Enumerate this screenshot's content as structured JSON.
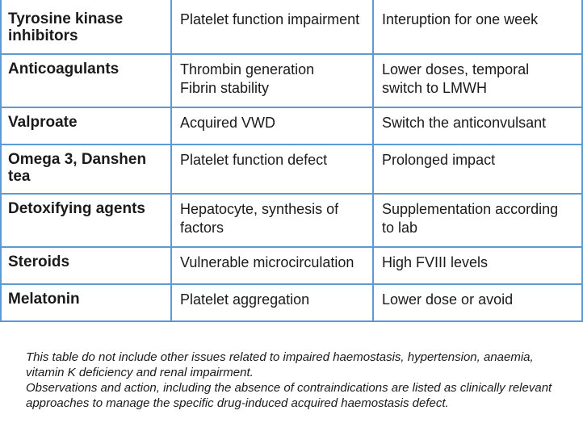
{
  "table": {
    "rows": [
      {
        "drug": "Tyrosine kinase inhibitors",
        "effect": [
          "Platelet function impairment"
        ],
        "action": [
          "Interuption for one week"
        ]
      },
      {
        "drug": "Anticoagulants",
        "effect": [
          "Thrombin generation",
          "Fibrin stability"
        ],
        "action": [
          "Lower doses, temporal",
          "switch to LMWH"
        ]
      },
      {
        "drug": "Valproate",
        "effect": [
          "Acquired VWD"
        ],
        "action": [
          "Switch the anticonvulsant"
        ]
      },
      {
        "drug": "Omega 3, Danshen tea",
        "effect": [
          "Platelet function defect"
        ],
        "action": [
          "Prolonged impact"
        ]
      },
      {
        "drug": "Detoxifying agents",
        "effect": [
          "Hepatocyte, synthesis of",
          "factors"
        ],
        "action": [
          "Supplementation according",
          "to lab"
        ]
      },
      {
        "drug": "Steroids",
        "effect": [
          "Vulnerable microcirculation"
        ],
        "action": [
          "High FVIII levels"
        ]
      },
      {
        "drug": "Melatonin",
        "effect": [
          "Platelet aggregation"
        ],
        "action": [
          "Lower dose or avoid"
        ]
      }
    ]
  },
  "footnotes": {
    "note1": "This table do not include other issues related to impaired haemostasis, hypertension, anaemia, vitamin K deficiency and renal impairment.",
    "note2": "Observations and action, including the absence of contraindications are listed as clinically relevant approaches to manage the specific drug-induced acquired haemostasis defect."
  },
  "colors": {
    "border": "#5b9bd5",
    "text": "#1a1a1a"
  }
}
